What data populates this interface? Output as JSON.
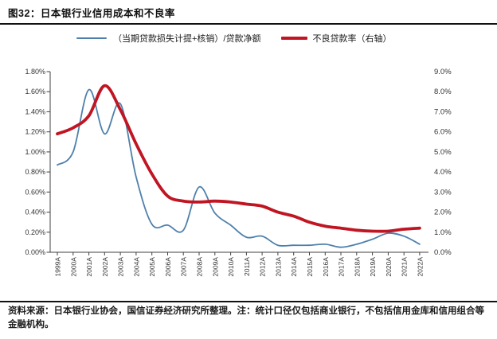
{
  "figure": {
    "title": "图32：日本银行业信用成本和不良率",
    "footer": "资料来源：日本银行业协会，国信证券经济研究所整理。注：统计口径仅包括商业银行，不包括信用金库和信用组合等金融机构。"
  },
  "legend": {
    "series1": "（当期贷款损失计提+核销）/贷款净额",
    "series2": "不良贷款率（右轴）"
  },
  "colors": {
    "blue": "#4e80ac",
    "red": "#c01522",
    "axis": "#404040",
    "tick_label": "#333333",
    "rule": "#111111"
  },
  "chart_data": {
    "type": "line",
    "title": "日本银行业信用成本和不良率",
    "categories": [
      "1999A",
      "2000A",
      "2001A",
      "2002A",
      "2003A",
      "2004A",
      "2005A",
      "2006A",
      "2007A",
      "2008A",
      "2009A",
      "2010A",
      "2011A",
      "2012A",
      "2013A",
      "2014A",
      "2015A",
      "2016A",
      "2017A",
      "2018A",
      "2019A",
      "2020A",
      "2021A",
      "2022A"
    ],
    "series": [
      {
        "name": "（当期贷款损失计提+核销）/贷款净额",
        "axis": "left",
        "style": "thin",
        "values": [
          0.87,
          1.0,
          1.62,
          1.18,
          1.48,
          0.75,
          0.28,
          0.27,
          0.22,
          0.65,
          0.39,
          0.27,
          0.15,
          0.16,
          0.07,
          0.07,
          0.07,
          0.08,
          0.05,
          0.08,
          0.13,
          0.19,
          0.16,
          0.08
        ]
      },
      {
        "name": "不良贷款率（右轴）",
        "axis": "right",
        "style": "thick",
        "values": [
          5.9,
          6.2,
          6.8,
          8.3,
          7.1,
          5.4,
          3.9,
          2.8,
          2.55,
          2.5,
          2.55,
          2.5,
          2.4,
          2.3,
          2.0,
          1.8,
          1.5,
          1.3,
          1.2,
          1.1,
          1.05,
          1.05,
          1.15,
          1.2
        ]
      }
    ],
    "left_axis": {
      "min": 0,
      "max": 1.8,
      "tick_labels_top_to_bottom": [
        "1.80%",
        "1.60%",
        "1.40%",
        "1.20%",
        "1.00%",
        "0.80%",
        "0.60%",
        "0.40%",
        "0.20%",
        "0.00%"
      ]
    },
    "right_axis": {
      "min": 0,
      "max": 9.0,
      "tick_labels_top_to_bottom": [
        "9.0%",
        "8.0%",
        "7.0%",
        "6.0%",
        "5.0%",
        "4.0%",
        "3.0%",
        "2.0%",
        "1.0%",
        "0.0%"
      ]
    },
    "grid": false,
    "legend_position": "top",
    "smooth_lines": true
  }
}
